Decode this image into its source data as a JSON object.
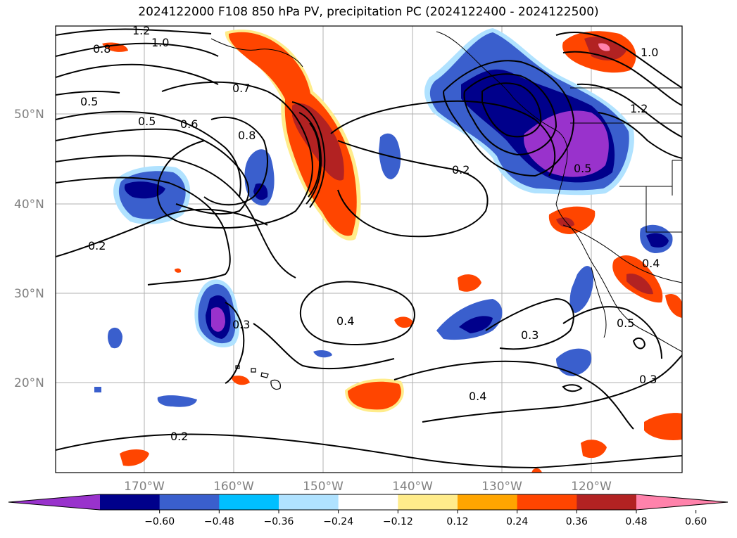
{
  "title": "2024122000 F108 850 hPa PV, precipitation PC (2024122400 - 2024122500)",
  "map": {
    "lat_labels": [
      "50°N",
      "40°N",
      "30°N",
      "20°N"
    ],
    "lon_labels": [
      "170°W",
      "160°W",
      "150°W",
      "140°W",
      "130°W",
      "120°W"
    ],
    "contour_labels": [
      {
        "text": "1.2"
      },
      {
        "text": "1.0"
      },
      {
        "text": "0.8"
      },
      {
        "text": "0.5"
      },
      {
        "text": "0.7"
      },
      {
        "text": "0.5"
      },
      {
        "text": "0.6"
      },
      {
        "text": "0.8"
      },
      {
        "text": "0.2"
      },
      {
        "text": "0.2"
      },
      {
        "text": "0.4"
      },
      {
        "text": "0.3"
      },
      {
        "text": "0.3"
      },
      {
        "text": "0.4"
      },
      {
        "text": "0.2"
      },
      {
        "text": "0.5"
      },
      {
        "text": "0.3"
      },
      {
        "text": "1.0"
      },
      {
        "text": "1.2"
      },
      {
        "text": "0.5"
      },
      {
        "text": "0.4"
      }
    ]
  },
  "colorbar": {
    "colors": [
      "#9932cc",
      "#00008b",
      "#3a5fcd",
      "#00bfff",
      "#b0e2ff",
      "#ffffff",
      "#ffec8b",
      "#ffa500",
      "#ff4500",
      "#b22222",
      "#ff82ab"
    ],
    "ticks": [
      "−0.60",
      "−0.48",
      "−0.36",
      "−0.24",
      "−0.12",
      "0.12",
      "0.24",
      "0.36",
      "0.48",
      "0.60"
    ]
  }
}
